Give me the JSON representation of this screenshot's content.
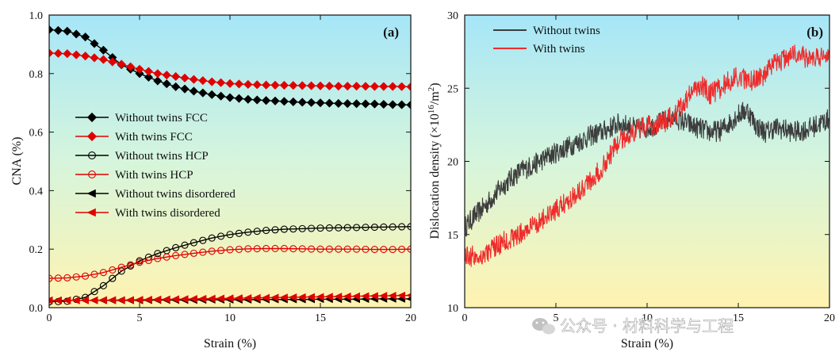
{
  "chart_data": [
    {
      "type": "line",
      "panel_label": "(a)",
      "xlabel": "Strain (%)",
      "ylabel": "CNA (%)",
      "xlim": [
        0,
        20
      ],
      "ylim": [
        0.0,
        1.0
      ],
      "xticks": [
        0,
        5,
        10,
        15,
        20
      ],
      "yticks": [
        0.0,
        0.2,
        0.4,
        0.6,
        0.8,
        1.0
      ],
      "ytick_labels": [
        "0.0",
        "0.2",
        "0.4",
        "0.6",
        "0.8",
        "1.0"
      ],
      "legend_position": "middle-left",
      "series": [
        {
          "name": "Without twins FCC",
          "color": "#000000",
          "marker": "diamond-filled",
          "x": [
            0,
            1,
            2,
            3,
            4,
            5,
            6,
            7,
            8,
            9,
            10,
            11,
            12,
            13,
            14,
            15,
            16,
            17,
            18,
            19,
            20
          ],
          "y": [
            0.95,
            0.945,
            0.925,
            0.88,
            0.83,
            0.8,
            0.775,
            0.755,
            0.74,
            0.728,
            0.718,
            0.712,
            0.708,
            0.705,
            0.702,
            0.7,
            0.698,
            0.697,
            0.696,
            0.694,
            0.693
          ]
        },
        {
          "name": "With twins FCC",
          "color": "#e00000",
          "marker": "diamond-filled",
          "x": [
            0,
            1,
            2,
            3,
            4,
            5,
            6,
            7,
            8,
            9,
            10,
            11,
            12,
            13,
            14,
            15,
            16,
            17,
            18,
            19,
            20
          ],
          "y": [
            0.87,
            0.868,
            0.86,
            0.848,
            0.832,
            0.815,
            0.8,
            0.79,
            0.78,
            0.772,
            0.766,
            0.763,
            0.761,
            0.76,
            0.759,
            0.758,
            0.757,
            0.757,
            0.756,
            0.756,
            0.755
          ]
        },
        {
          "name": "Without twins HCP",
          "color": "#000000",
          "marker": "circle-open",
          "x": [
            0,
            1,
            2,
            3,
            4,
            5,
            6,
            7,
            8,
            9,
            10,
            11,
            12,
            13,
            14,
            15,
            16,
            17,
            18,
            19,
            20
          ],
          "y": [
            0.02,
            0.022,
            0.035,
            0.075,
            0.125,
            0.16,
            0.185,
            0.205,
            0.222,
            0.238,
            0.25,
            0.258,
            0.264,
            0.268,
            0.27,
            0.272,
            0.273,
            0.274,
            0.275,
            0.276,
            0.277
          ]
        },
        {
          "name": "With twins HCP",
          "color": "#e00000",
          "marker": "circle-open",
          "x": [
            0,
            1,
            2,
            3,
            4,
            5,
            6,
            7,
            8,
            9,
            10,
            11,
            12,
            13,
            14,
            15,
            16,
            17,
            18,
            19,
            20
          ],
          "y": [
            0.1,
            0.102,
            0.108,
            0.12,
            0.138,
            0.155,
            0.168,
            0.178,
            0.186,
            0.193,
            0.198,
            0.201,
            0.202,
            0.202,
            0.201,
            0.2,
            0.2,
            0.2,
            0.199,
            0.199,
            0.2
          ]
        },
        {
          "name": "Without twins disordered",
          "color": "#000000",
          "marker": "triangle-left",
          "x": [
            0,
            1,
            2,
            3,
            4,
            5,
            6,
            7,
            8,
            9,
            10,
            11,
            12,
            13,
            14,
            15,
            16,
            17,
            18,
            19,
            20
          ],
          "y": [
            0.025,
            0.025,
            0.025,
            0.025,
            0.025,
            0.025,
            0.026,
            0.026,
            0.026,
            0.027,
            0.027,
            0.027,
            0.028,
            0.028,
            0.028,
            0.029,
            0.029,
            0.029,
            0.03,
            0.03,
            0.03
          ]
        },
        {
          "name": "With twins disordered",
          "color": "#e00000",
          "marker": "triangle-left",
          "x": [
            0,
            1,
            2,
            3,
            4,
            5,
            6,
            7,
            8,
            9,
            10,
            11,
            12,
            13,
            14,
            15,
            16,
            17,
            18,
            19,
            20
          ],
          "y": [
            0.025,
            0.025,
            0.025,
            0.026,
            0.026,
            0.027,
            0.028,
            0.029,
            0.03,
            0.031,
            0.032,
            0.033,
            0.034,
            0.035,
            0.036,
            0.037,
            0.038,
            0.039,
            0.04,
            0.041,
            0.042
          ]
        }
      ]
    },
    {
      "type": "line",
      "panel_label": "(b)",
      "xlabel": "Strain (%)",
      "ylabel_prefix": "Dislocation density (×10",
      "ylabel_sup1": "16",
      "ylabel_mid": "/m",
      "ylabel_sup2": "2",
      "ylabel_suffix": ")",
      "xlim": [
        0,
        20
      ],
      "ylim": [
        10,
        30
      ],
      "xticks": [
        0,
        5,
        10,
        15,
        20
      ],
      "yticks": [
        10,
        15,
        20,
        25,
        30
      ],
      "legend_position": "top-left",
      "series": [
        {
          "name": "Without twins",
          "color": "#3d3d3d",
          "x": [
            0,
            0.5,
            1,
            1.5,
            2,
            2.5,
            3,
            3.5,
            4,
            4.5,
            5,
            5.5,
            6,
            6.5,
            7,
            7.5,
            8,
            8.5,
            9,
            9.5,
            10,
            10.5,
            11,
            11.5,
            12,
            12.5,
            13,
            13.5,
            14,
            14.5,
            15,
            15.5,
            16,
            16.5,
            17,
            17.5,
            18,
            18.5,
            19,
            19.5,
            20
          ],
          "y": [
            15.5,
            16.2,
            16.8,
            17.5,
            18.2,
            18.8,
            19.3,
            19.6,
            19.9,
            20.3,
            20.6,
            20.9,
            21.2,
            21.5,
            21.8,
            22.0,
            22.3,
            22.6,
            22.4,
            22.2,
            22.3,
            22.5,
            22.8,
            23.0,
            22.7,
            22.4,
            22.2,
            22.0,
            22.1,
            22.6,
            23.2,
            23.5,
            22.4,
            22.0,
            22.3,
            22.2,
            22.0,
            22.1,
            22.3,
            22.6,
            22.9
          ]
        },
        {
          "name": "With twins",
          "color": "#ef2b2b",
          "x": [
            0,
            0.5,
            1,
            1.5,
            2,
            2.5,
            3,
            3.5,
            4,
            4.5,
            5,
            5.5,
            6,
            6.5,
            7,
            7.5,
            8,
            8.5,
            9,
            9.5,
            10,
            10.5,
            11,
            11.5,
            12,
            12.5,
            13,
            13.5,
            14,
            14.5,
            15,
            15.5,
            16,
            16.5,
            17,
            17.5,
            18,
            18.5,
            19,
            19.5,
            20
          ],
          "y": [
            13.6,
            13.5,
            13.6,
            14.0,
            14.4,
            14.7,
            15.0,
            15.4,
            15.8,
            16.2,
            16.6,
            17.2,
            17.7,
            18.3,
            18.8,
            19.5,
            20.5,
            21.5,
            21.8,
            22.2,
            22.4,
            22.5,
            22.7,
            23.2,
            24.0,
            24.8,
            25.2,
            24.6,
            25.0,
            25.5,
            25.8,
            25.5,
            25.6,
            26.0,
            26.6,
            27.0,
            27.4,
            27.2,
            26.9,
            27.2,
            27.3
          ]
        }
      ]
    }
  ],
  "watermark": {
    "text": "公众号 · 材料科学与工程",
    "icon": "wechat-icon"
  }
}
